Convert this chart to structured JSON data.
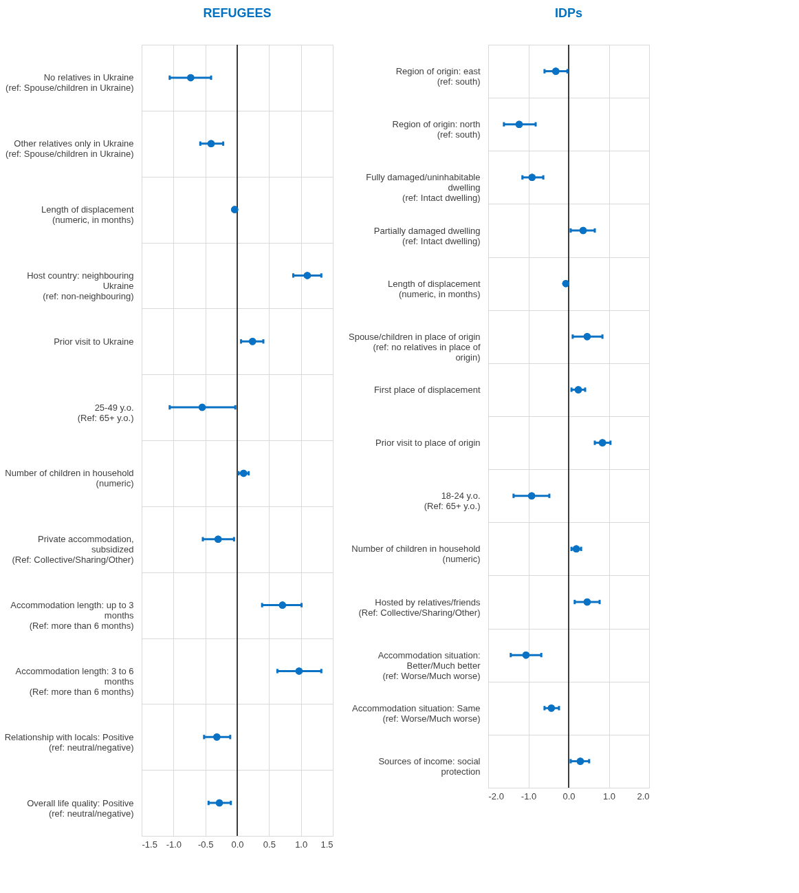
{
  "chart_data": [
    {
      "type": "scatter",
      "orientation": "horizontal",
      "title": "REFUGEES",
      "color": "#0a72c4",
      "grid": true,
      "marker": "circle",
      "categories": [
        "No relatives in Ukraine\n(ref: Spouse/children in Ukraine)",
        "Other relatives only in Ukraine\n(ref: Spouse/children in Ukraine)",
        "Length of displacement\n(numeric, in months)",
        "Host country: neighbouring\nUkraine\n(ref: non-neighbouring)",
        "Prior visit to Ukraine",
        "25-49 y.o.\n(Ref: 65+ y.o.)",
        "Number of children in household\n(numeric)",
        "Private accommodation,\nsubsidized\n(Ref: Collective/Sharing/Other)",
        "Accommodation length: up to 3\nmonths\n(Ref: more than 6 months)",
        "Accommodation length: 3 to 6\nmonths\n(Ref: more than 6 months)",
        "Relationship with locals: Positive\n(ref: neutral/negative)",
        "Overall life quality: Positive\n(ref: neutral/negative)"
      ],
      "values": [
        -0.73,
        -0.41,
        -0.04,
        1.1,
        0.24,
        -0.55,
        0.1,
        -0.3,
        0.71,
        0.97,
        -0.32,
        -0.28
      ],
      "errors": [
        [
          -1.06,
          -0.41
        ],
        [
          -0.58,
          -0.22
        ],
        null,
        [
          0.88,
          1.32
        ],
        [
          0.06,
          0.41
        ],
        [
          -1.06,
          -0.03
        ],
        [
          0.02,
          0.18
        ],
        [
          -0.54,
          -0.05
        ],
        [
          0.39,
          1.01
        ],
        [
          0.63,
          1.32
        ],
        [
          -0.52,
          -0.11
        ],
        [
          -0.45,
          -0.1
        ]
      ],
      "xlim": [
        -1.5,
        1.5
      ],
      "xticks": [
        {
          "value": -1.5,
          "label": "-1.5"
        },
        {
          "value": -1,
          "label": "-1.0"
        },
        {
          "value": -0.5,
          "label": "-0.5"
        },
        {
          "value": 0,
          "label": "0.0"
        },
        {
          "value": 0.5,
          "label": "0.5"
        },
        {
          "value": 1,
          "label": "1.0"
        },
        {
          "value": 1.5,
          "label": "1.5"
        }
      ],
      "ref_lines": [
        {
          "axis": "x",
          "value": 0,
          "color": "#000000"
        }
      ]
    },
    {
      "type": "scatter",
      "orientation": "horizontal",
      "title": "IDPs",
      "color": "#0a72c4",
      "grid": true,
      "marker": "circle",
      "categories": [
        "Region of origin: east\n(ref: south)",
        "Region of origin: north\n(ref: south)",
        "Fully damaged/uninhabitable\ndwelling\n(ref: Intact dwelling)",
        "Partially damaged dwelling\n(ref: Intact dwelling)",
        "Length of displacement\n(numeric, in months)",
        "Spouse/children in place of origin\n(ref: no relatives in place of\norigin)",
        "First place of displacement",
        "Prior visit to place of origin",
        "18-24 y.o.\n(Ref: 65+ y.o.)",
        "Number of children in household\n(numeric)",
        "Hosted by relatives/friends\n(Ref: Collective/Sharing/Other)",
        "Accommodation situation:\nBetter/Much better\n(ref: Worse/Much worse)",
        "Accommodation situation: Same\n(ref: Worse/Much worse)",
        "Sources of income: social\nprotection"
      ],
      "values": [
        -0.32,
        -1.23,
        -0.91,
        0.36,
        -0.07,
        0.46,
        0.24,
        0.84,
        -0.92,
        0.19,
        0.46,
        -1.06,
        -0.43,
        0.29
      ],
      "errors": [
        [
          -0.6,
          -0.03
        ],
        [
          -1.61,
          -0.82
        ],
        [
          -1.15,
          -0.63
        ],
        [
          0.05,
          0.65
        ],
        null,
        [
          0.1,
          0.84
        ],
        [
          0.07,
          0.41
        ],
        [
          0.65,
          1.04
        ],
        [
          -1.37,
          -0.48
        ],
        [
          0.07,
          0.31
        ],
        [
          0.15,
          0.77
        ],
        [
          -1.44,
          -0.68
        ],
        [
          -0.6,
          -0.24
        ],
        [
          0.05,
          0.51
        ]
      ],
      "xlim": [
        -2,
        2
      ],
      "xticks": [
        {
          "value": -2,
          "label": "-2.0"
        },
        {
          "value": -1,
          "label": "-1.0"
        },
        {
          "value": 0,
          "label": "0.0"
        },
        {
          "value": 1,
          "label": "1.0"
        },
        {
          "value": 2,
          "label": "2.0"
        }
      ],
      "ref_lines": [
        {
          "axis": "x",
          "value": 0,
          "color": "#000000"
        }
      ]
    }
  ]
}
